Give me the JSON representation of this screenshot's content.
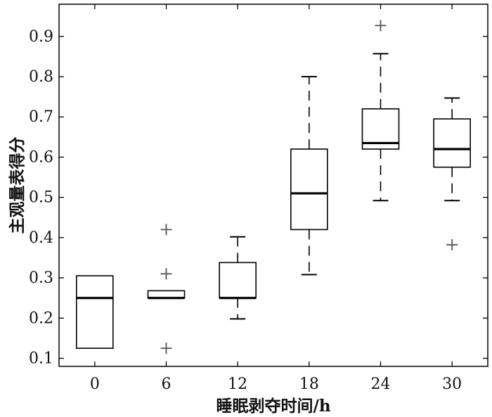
{
  "chart_data": {
    "type": "boxplot",
    "xlabel": "睡眠剥夺时间/h",
    "ylabel": "主观量表得分",
    "categories": [
      "0",
      "6",
      "12",
      "18",
      "24",
      "30"
    ],
    "ylim": [
      0.08,
      0.98
    ],
    "yticks": [
      "0.1",
      "0.2",
      "0.3",
      "0.4",
      "0.5",
      "0.6",
      "0.7",
      "0.8",
      "0.9"
    ],
    "grid": false,
    "boxes": [
      {
        "category": "0",
        "q1": 0.125,
        "median": 0.25,
        "q3": 0.305,
        "whisker_low": null,
        "whisker_high": null,
        "outliers": []
      },
      {
        "category": "6",
        "q1": 0.25,
        "median": 0.25,
        "q3": 0.268,
        "whisker_low": null,
        "whisker_high": null,
        "outliers": [
          0.125,
          0.31,
          0.42
        ]
      },
      {
        "category": "12",
        "q1": 0.25,
        "median": 0.25,
        "q3": 0.338,
        "whisker_low": 0.198,
        "whisker_high": 0.402,
        "outliers": []
      },
      {
        "category": "18",
        "q1": 0.42,
        "median": 0.51,
        "q3": 0.62,
        "whisker_low": 0.308,
        "whisker_high": 0.8,
        "outliers": []
      },
      {
        "category": "24",
        "q1": 0.62,
        "median": 0.635,
        "q3": 0.72,
        "whisker_low": 0.492,
        "whisker_high": 0.857,
        "outliers": [
          0.927
        ]
      },
      {
        "category": "30",
        "q1": 0.575,
        "median": 0.62,
        "q3": 0.695,
        "whisker_low": 0.492,
        "whisker_high": 0.747,
        "outliers": [
          0.382
        ]
      }
    ]
  }
}
